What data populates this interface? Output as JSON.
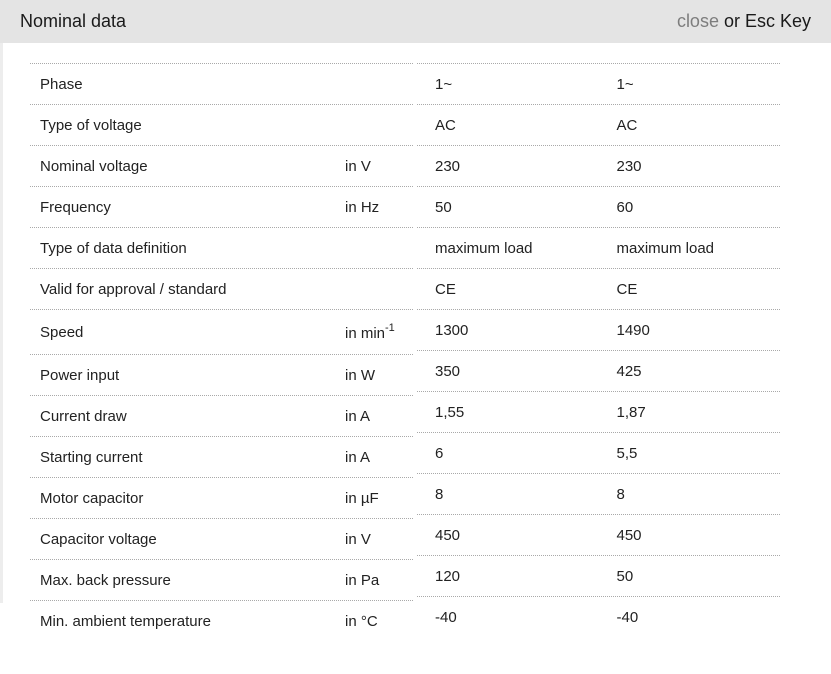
{
  "header": {
    "title": "Nominal data",
    "close_label": "close",
    "close_suffix": "or Esc Key"
  },
  "colors": {
    "header_bg": "#e4e4e4",
    "close_link": "#7d7d7d",
    "text": "#222222",
    "separator": "#a9a9a9"
  },
  "table": {
    "rows": [
      {
        "label": "Phase",
        "unit": "",
        "values": [
          "1~",
          "1~"
        ]
      },
      {
        "label": "Type of voltage",
        "unit": "",
        "values": [
          "AC",
          "AC"
        ]
      },
      {
        "label": "Nominal voltage",
        "unit": "in V",
        "values": [
          "230",
          "230"
        ]
      },
      {
        "label": "Frequency",
        "unit": "in Hz",
        "values": [
          "50",
          "60"
        ]
      },
      {
        "label": "Type of data definition",
        "unit": "",
        "values": [
          "maximum load",
          "maximum load"
        ]
      },
      {
        "label": "Valid for approval / standard",
        "unit": "",
        "values": [
          "CE",
          "CE"
        ]
      },
      {
        "label": "Speed",
        "unit": "in min",
        "unit_sup": "-1",
        "values": [
          "1300",
          "1490"
        ]
      },
      {
        "label": "Power input",
        "unit": "in W",
        "values": [
          "350",
          "425"
        ]
      },
      {
        "label": "Current draw",
        "unit": "in A",
        "values": [
          "1,55",
          "1,87"
        ]
      },
      {
        "label": "Starting current",
        "unit": "in A",
        "values": [
          "6",
          "5,5"
        ]
      },
      {
        "label": "Motor capacitor",
        "unit": "in µF",
        "values": [
          "8",
          "8"
        ]
      },
      {
        "label": "Capacitor voltage",
        "unit": "in V",
        "values": [
          "450",
          "450"
        ]
      },
      {
        "label": "Max. back pressure",
        "unit": "in Pa",
        "values": [
          "120",
          "50"
        ]
      },
      {
        "label": "Min. ambient temperature",
        "unit": "in °C",
        "values": [
          "-40",
          "-40"
        ]
      }
    ]
  }
}
